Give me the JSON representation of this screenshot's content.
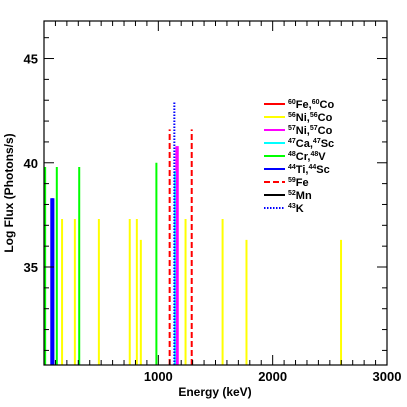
{
  "chart_data": {
    "type": "line",
    "title": "",
    "xlabel": "Energy (keV)",
    "ylabel": "Log Flux (Photons/s)",
    "xlim": [
      0,
      3000
    ],
    "ylim": [
      30.3,
      46.8
    ],
    "x_ticks": [
      {
        "value": 1000,
        "label": "1000"
      },
      {
        "value": 2000,
        "label": "2000"
      },
      {
        "value": 3000,
        "label": "3000"
      }
    ],
    "y_ticks": [
      {
        "value": 35,
        "label": "35"
      },
      {
        "value": 40,
        "label": "40"
      },
      {
        "value": 45,
        "label": "45"
      }
    ],
    "grid": false,
    "legend_position": "right",
    "series": [
      {
        "name": "Fe,Co",
        "mass_a": "60",
        "mass_b": "60",
        "color": "#ff0000",
        "style": "solid",
        "lines": []
      },
      {
        "name": "Ni,Co",
        "mass_a": "56",
        "mass_b": "56",
        "color": "#ffff00",
        "style": "solid",
        "lines": [
          {
            "x": 158,
            "y": 37.3
          },
          {
            "x": 270,
            "y": 37.3
          },
          {
            "x": 480,
            "y": 37.3
          },
          {
            "x": 750,
            "y": 37.3
          },
          {
            "x": 812,
            "y": 37.3
          },
          {
            "x": 847,
            "y": 36.3
          },
          {
            "x": 1238,
            "y": 37.3
          },
          {
            "x": 1562,
            "y": 37.3
          },
          {
            "x": 1771,
            "y": 36.3
          },
          {
            "x": 2598,
            "y": 36.3
          }
        ]
      },
      {
        "name": "Ni,Co",
        "mass_a": "57",
        "mass_b": "57",
        "color": "#ff00ff",
        "style": "solid",
        "lines": [
          {
            "x": 1158,
            "y": 40.8
          },
          {
            "x": 1170,
            "y": 40.8
          }
        ]
      },
      {
        "name": "Ca,Sc",
        "mass_a": "47",
        "mass_b": "47",
        "color": "#00ffff",
        "style": "solid",
        "lines": [
          {
            "x": 1145,
            "y": 39.6
          }
        ]
      },
      {
        "name": "Cr,V",
        "mass_a": "48",
        "mass_b": "48",
        "color": "#00ff00",
        "style": "solid",
        "lines": [
          {
            "x": 10,
            "y": 39.8
          },
          {
            "x": 112,
            "y": 39.8
          },
          {
            "x": 308,
            "y": 39.8
          },
          {
            "x": 983,
            "y": 40.0
          }
        ]
      },
      {
        "name": "Ti,Sc",
        "mass_a": "44",
        "mass_b": "44",
        "color": "#0000ff",
        "style": "solid",
        "lines": [
          {
            "x": 68,
            "y": 38.3
          },
          {
            "x": 78,
            "y": 38.3
          }
        ]
      },
      {
        "name": "Fe",
        "mass_a": "59",
        "color": "#ff0000",
        "style": "dashed",
        "lines": [
          {
            "x": 1099,
            "y": 41.6
          },
          {
            "x": 1292,
            "y": 41.6
          }
        ]
      },
      {
        "name": "Mn",
        "mass_a": "52",
        "color": "#000000",
        "style": "solid",
        "lines": []
      },
      {
        "name": "K",
        "mass_a": "43",
        "color": "#0000ff",
        "style": "dotted",
        "lines": [
          {
            "x": 1140,
            "y": 42.9
          }
        ]
      }
    ]
  }
}
